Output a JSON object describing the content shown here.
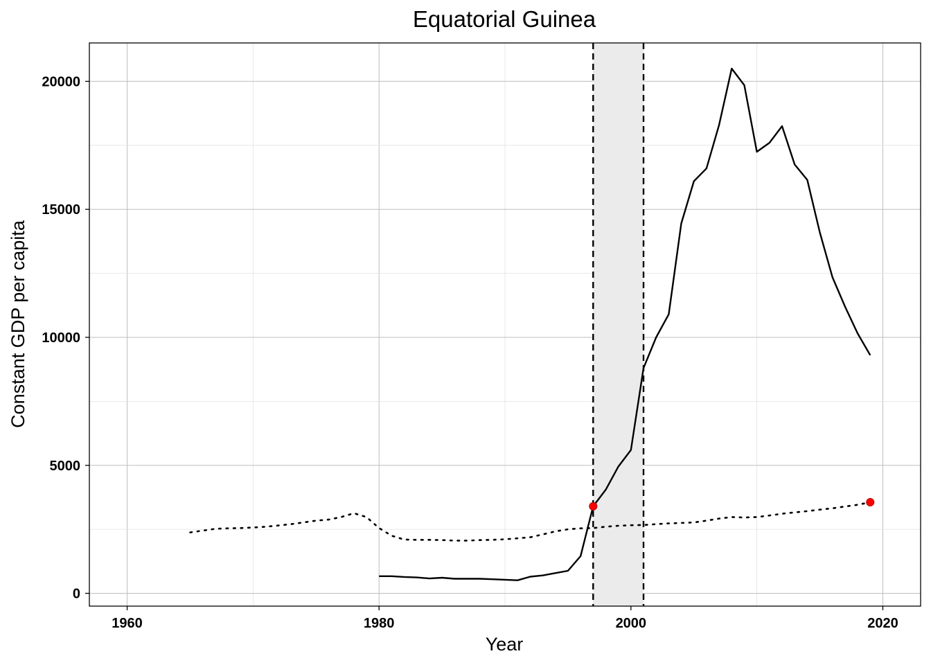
{
  "chart_data": {
    "type": "line",
    "title": "Equatorial Guinea",
    "xlabel": "Year",
    "ylabel": "Constant GDP per capita",
    "xlim": [
      1957,
      2023
    ],
    "ylim": [
      -500,
      21500
    ],
    "x_ticks": [
      1960,
      1980,
      2000,
      2020
    ],
    "y_ticks": [
      0,
      5000,
      10000,
      15000,
      20000
    ],
    "grid": true,
    "legend": "none",
    "shaded_region": {
      "x_start": 1997,
      "x_end": 2001,
      "color": "#ebebeb"
    },
    "vlines": [
      1997,
      2001
    ],
    "series": [
      {
        "style": "solid",
        "color": "#000000",
        "x": [
          1980,
          1981,
          1982,
          1983,
          1984,
          1985,
          1986,
          1987,
          1988,
          1989,
          1990,
          1991,
          1992,
          1993,
          1994,
          1995,
          1996,
          1997,
          1998,
          1999,
          2000,
          2001,
          2002,
          2003,
          2004,
          2005,
          2006,
          2007,
          2008,
          2009,
          2010,
          2011,
          2012,
          2013,
          2014,
          2015,
          2016,
          2017,
          2018,
          2019
        ],
        "values": [
          670,
          670,
          640,
          620,
          580,
          610,
          570,
          570,
          570,
          550,
          530,
          510,
          650,
          700,
          790,
          880,
          1450,
          3400,
          4050,
          4950,
          5600,
          8800,
          10000,
          10900,
          14450,
          16100,
          16600,
          18300,
          20500,
          19850,
          17250,
          17600,
          18250,
          16750,
          16150,
          14100,
          12350,
          11200,
          10150,
          9300
        ]
      },
      {
        "style": "dotted",
        "color": "#000000",
        "x": [
          1965,
          1966,
          1967,
          1968,
          1969,
          1970,
          1971,
          1972,
          1973,
          1974,
          1975,
          1976,
          1977,
          1978,
          1979,
          1980,
          1981,
          1982,
          1983,
          1984,
          1985,
          1986,
          1987,
          1988,
          1989,
          1990,
          1991,
          1992,
          1993,
          1994,
          1995,
          1996,
          1997,
          1998,
          1999,
          2000,
          2001,
          2002,
          2003,
          2004,
          2005,
          2006,
          2007,
          2008,
          2009,
          2010,
          2011,
          2012,
          2013,
          2014,
          2015,
          2016,
          2017,
          2018,
          2019
        ],
        "values": [
          2380,
          2450,
          2520,
          2540,
          2550,
          2570,
          2600,
          2650,
          2700,
          2770,
          2840,
          2880,
          2980,
          3130,
          2980,
          2550,
          2250,
          2100,
          2090,
          2090,
          2080,
          2060,
          2060,
          2080,
          2090,
          2110,
          2150,
          2190,
          2300,
          2420,
          2500,
          2540,
          2550,
          2600,
          2640,
          2660,
          2670,
          2700,
          2730,
          2750,
          2770,
          2840,
          2920,
          2980,
          2960,
          2980,
          3040,
          3110,
          3160,
          3210,
          3270,
          3320,
          3390,
          3460,
          3560
        ]
      }
    ],
    "highlight_points": [
      {
        "x": 1997,
        "y": 3400,
        "color": "#ff0000"
      },
      {
        "x": 2019,
        "y": 3560,
        "color": "#ff0000"
      }
    ]
  }
}
